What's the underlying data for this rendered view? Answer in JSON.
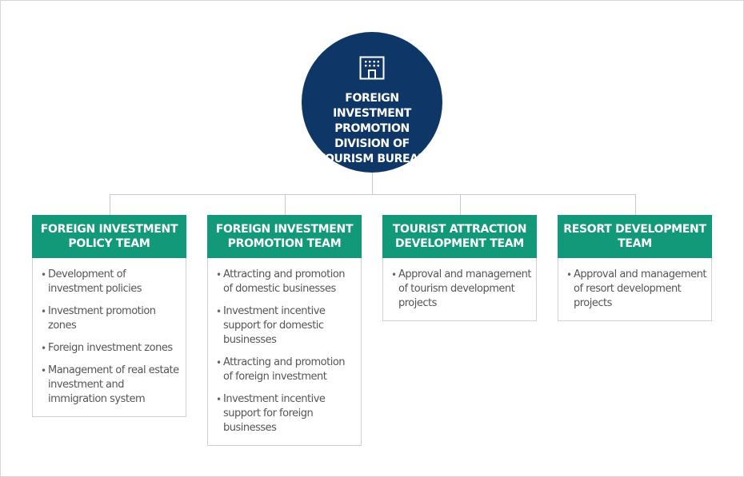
{
  "center": {
    "title": "FOREIGN INVESTMENT PROMOTION DIVISION OF TOURISM BUREAU",
    "icon": "building-icon",
    "color": "#0e3768"
  },
  "colors": {
    "team_header": "#11997a",
    "connector": "#c9c9c9"
  },
  "teams": [
    {
      "title": "FOREIGN INVESTMENT POLICY TEAM",
      "items": [
        "Development of investment policies",
        "Investment promotion zones",
        "Foreign investment zones",
        "Management of real estate investment and immigration system"
      ]
    },
    {
      "title": "FOREIGN INVESTMENT PROMOTION TEAM",
      "items": [
        "Attracting and promotion of domestic businesses",
        "Investment incentive support for domestic businesses",
        "Attracting and promotion of foreign investment",
        "Investment incentive support for foreign businesses"
      ]
    },
    {
      "title": "TOURIST ATTRACTION DEVELOPMENT TEAM",
      "items": [
        "Approval and management of tourism development projects"
      ]
    },
    {
      "title": "RESORT DEVELOPMENT TEAM",
      "items": [
        "Approval and management of resort development projects"
      ]
    }
  ]
}
